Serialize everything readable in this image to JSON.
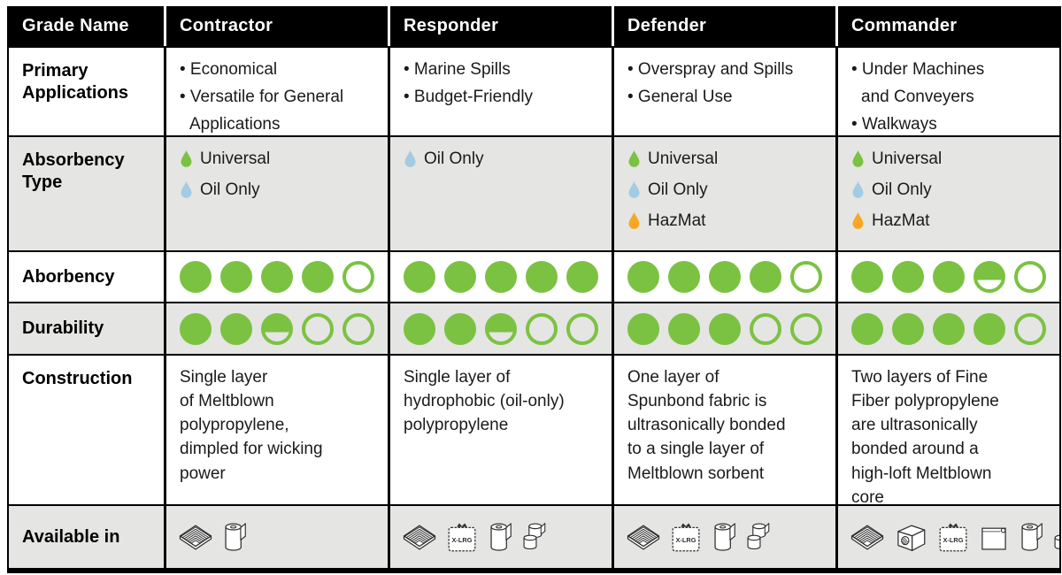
{
  "colors": {
    "header_bg": "#000000",
    "header_text": "#ffffff",
    "alt_row_bg": "#e5e5e4",
    "body_text": "#1a1a1a",
    "rating_green": "#7cc242",
    "droplet_green": "#7cc242",
    "droplet_blue": "#a3cbe3",
    "droplet_orange": "#f7a723",
    "icon_stroke": "#2e2e2e",
    "grid_line": "#000000"
  },
  "table": {
    "corner_header": "Grade Name",
    "xlrg_label": "X-LRG",
    "rating_max": 5,
    "row_labels": {
      "applications": "Primary Applications",
      "absorbency_type": "Absorbency Type",
      "absorbency": "Aborbency",
      "durability": "Durability",
      "construction": "Construction",
      "available_in": "Available in"
    },
    "columns": [
      {
        "name": "Contractor",
        "applications": [
          "Economical",
          "Versatile for General\nApplications"
        ],
        "absorbency_types": [
          {
            "label": "Universal",
            "color": "#7cc242"
          },
          {
            "label": "Oil Only",
            "color": "#a3cbe3"
          }
        ],
        "absorbency_rating": 4,
        "durability_rating": 2.5,
        "construction": "Single layer\nof Meltblown\npolypropylene,\ndimpled for wicking\npower",
        "available_formats": [
          "pad-stack",
          "roll"
        ]
      },
      {
        "name": "Responder",
        "applications": [
          "Marine Spills",
          "Budget-Friendly"
        ],
        "absorbency_types": [
          {
            "label": "Oil Only",
            "color": "#a3cbe3"
          }
        ],
        "absorbency_rating": 5,
        "durability_rating": 2.5,
        "construction": "Single layer of\nhydrophobic (oil-only)\npolypropylene",
        "available_formats": [
          "pad-stack",
          "xlrg-pad",
          "roll",
          "split-roll"
        ]
      },
      {
        "name": "Defender",
        "applications": [
          "Overspray and Spills",
          "General Use"
        ],
        "absorbency_types": [
          {
            "label": "Universal",
            "color": "#7cc242"
          },
          {
            "label": "Oil Only",
            "color": "#a3cbe3"
          },
          {
            "label": "HazMat",
            "color": "#f7a723"
          }
        ],
        "absorbency_rating": 4,
        "durability_rating": 3,
        "construction": "One layer of\nSpunbond fabric is\nultrasonically bonded\nto a single layer of\nMeltblown sorbent",
        "available_formats": [
          "pad-stack",
          "xlrg-pad",
          "roll",
          "split-roll"
        ]
      },
      {
        "name": "Commander",
        "applications": [
          "Under Machines\nand Conveyers",
          "Walkways"
        ],
        "absorbency_types": [
          {
            "label": "Universal",
            "color": "#7cc242"
          },
          {
            "label": "Oil Only",
            "color": "#a3cbe3"
          },
          {
            "label": "HazMat",
            "color": "#f7a723"
          }
        ],
        "absorbency_rating": 3.5,
        "durability_rating": 4,
        "construction": "Two layers of Fine\nFiber polypropylene\nare ultrasonically\nbonded around a\nhigh-loft Meltblown\ncore",
        "available_formats": [
          "pad-stack",
          "dispenser-box",
          "xlrg-pad",
          "mat",
          "roll",
          "split-roll",
          "box"
        ]
      }
    ]
  },
  "chart_data": {
    "type": "table",
    "columns": [
      "Grade Name",
      "Contractor",
      "Responder",
      "Defender",
      "Commander"
    ],
    "rows": [
      [
        "Primary Applications",
        "Economical; Versatile for General Applications",
        "Marine Spills; Budget-Friendly",
        "Overspray and Spills; General Use",
        "Under Machines and Conveyers; Walkways"
      ],
      [
        "Absorbency Type",
        "Universal; Oil Only",
        "Oil Only",
        "Universal; Oil Only; HazMat",
        "Universal; Oil Only; HazMat"
      ],
      [
        "Aborbency (out of 5)",
        4,
        5,
        4,
        3.5
      ],
      [
        "Durability (out of 5)",
        2.5,
        2.5,
        3,
        4
      ],
      [
        "Construction",
        "Single layer of Meltblown polypropylene, dimpled for wicking power",
        "Single layer of hydrophobic (oil-only) polypropylene",
        "One layer of Spunbond fabric is ultrasonically bonded to a single layer of Meltblown sorbent",
        "Two layers of Fine Fiber polypropylene are ultrasonically bonded around a high-loft Meltblown core"
      ],
      [
        "Available in",
        "Pads; Roll",
        "Pads; X-LRG Pads; Roll; Split Roll",
        "Pads; X-LRG Pads; Roll; Split Roll",
        "Pads; Dispenser Box; X-LRG Pads; Mat; Roll; Split Roll; Box"
      ]
    ]
  }
}
